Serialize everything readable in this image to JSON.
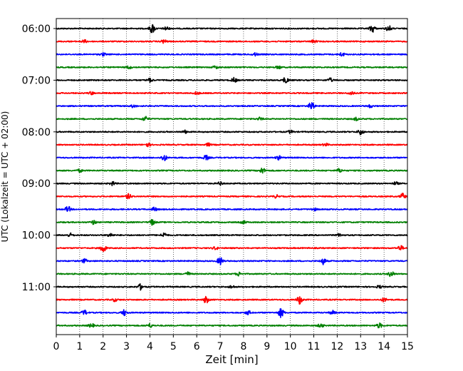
{
  "chart_data": {
    "type": "line",
    "title": "",
    "xlabel": "Zeit  [min]",
    "ylabel": "UTC (Lokalzeit = UTC + 02:00)",
    "xlim": [
      0,
      15
    ],
    "x_ticks": [
      "0",
      "1",
      "2",
      "3",
      "4",
      "5",
      "6",
      "7",
      "8",
      "9",
      "10",
      "11",
      "12",
      "13",
      "14",
      "15"
    ],
    "grid": "vertical dotted lines at each minute",
    "rows_per_hour": 4,
    "row_interval_minutes": 15,
    "y_ticks": [
      "06:00",
      "07:00",
      "08:00",
      "09:00",
      "10:00",
      "11:00"
    ],
    "color_cycle": [
      "#000000",
      "#ff0000",
      "#0000ff",
      "#008000"
    ],
    "series": [
      {
        "start": "06:00",
        "color": "#000000",
        "events": [
          [
            4.1,
            1.0
          ],
          [
            4.7,
            0.4
          ],
          [
            13.5,
            0.8
          ],
          [
            14.2,
            0.6
          ]
        ]
      },
      {
        "start": "06:15",
        "color": "#ff0000",
        "events": [
          [
            1.2,
            0.3
          ],
          [
            4.6,
            0.4
          ],
          [
            11.0,
            0.3
          ]
        ]
      },
      {
        "start": "06:30",
        "color": "#0000ff",
        "events": [
          [
            2.0,
            0.3
          ],
          [
            8.5,
            0.3
          ],
          [
            12.2,
            0.4
          ]
        ]
      },
      {
        "start": "06:45",
        "color": "#008000",
        "events": [
          [
            3.1,
            0.3
          ],
          [
            6.8,
            0.3
          ],
          [
            9.5,
            0.3
          ]
        ]
      },
      {
        "start": "07:00",
        "color": "#000000",
        "events": [
          [
            4.0,
            0.4
          ],
          [
            7.6,
            0.5
          ],
          [
            9.8,
            0.6
          ],
          [
            11.7,
            0.4
          ]
        ]
      },
      {
        "start": "07:15",
        "color": "#ff0000",
        "events": [
          [
            1.5,
            0.3
          ],
          [
            6.0,
            0.3
          ],
          [
            12.6,
            0.4
          ]
        ]
      },
      {
        "start": "07:30",
        "color": "#0000ff",
        "events": [
          [
            3.3,
            0.3
          ],
          [
            10.9,
            0.9
          ],
          [
            13.4,
            0.3
          ]
        ]
      },
      {
        "start": "07:45",
        "color": "#008000",
        "events": [
          [
            3.8,
            0.5
          ],
          [
            8.7,
            0.3
          ],
          [
            12.8,
            0.3
          ]
        ]
      },
      {
        "start": "08:00",
        "color": "#000000",
        "events": [
          [
            5.5,
            0.3
          ],
          [
            10.0,
            0.3
          ],
          [
            13.0,
            0.6
          ]
        ]
      },
      {
        "start": "08:15",
        "color": "#ff0000",
        "events": [
          [
            3.9,
            0.4
          ],
          [
            6.5,
            0.3
          ],
          [
            11.5,
            0.3
          ]
        ]
      },
      {
        "start": "08:30",
        "color": "#0000ff",
        "events": [
          [
            4.6,
            0.7
          ],
          [
            6.4,
            0.5
          ],
          [
            9.5,
            0.4
          ]
        ]
      },
      {
        "start": "08:45",
        "color": "#008000",
        "events": [
          [
            1.0,
            0.3
          ],
          [
            8.8,
            0.6
          ],
          [
            12.1,
            0.4
          ]
        ]
      },
      {
        "start": "09:00",
        "color": "#000000",
        "events": [
          [
            2.4,
            0.4
          ],
          [
            7.0,
            0.3
          ],
          [
            14.5,
            0.3
          ]
        ]
      },
      {
        "start": "09:15",
        "color": "#ff0000",
        "events": [
          [
            3.1,
            0.5
          ],
          [
            9.4,
            0.3
          ],
          [
            14.8,
            0.6
          ]
        ]
      },
      {
        "start": "09:30",
        "color": "#0000ff",
        "events": [
          [
            0.5,
            0.6
          ],
          [
            4.2,
            0.4
          ],
          [
            11.0,
            0.3
          ]
        ]
      },
      {
        "start": "09:45",
        "color": "#008000",
        "events": [
          [
            1.6,
            0.4
          ],
          [
            4.1,
            0.6
          ],
          [
            8.0,
            0.3
          ]
        ]
      },
      {
        "start": "10:00",
        "color": "#000000",
        "events": [
          [
            0.6,
            0.4
          ],
          [
            2.3,
            0.4
          ],
          [
            4.6,
            0.5
          ],
          [
            12.1,
            0.3
          ]
        ]
      },
      {
        "start": "10:15",
        "color": "#ff0000",
        "events": [
          [
            2.0,
            0.9
          ],
          [
            6.8,
            0.3
          ],
          [
            14.7,
            0.5
          ]
        ]
      },
      {
        "start": "10:30",
        "color": "#0000ff",
        "events": [
          [
            1.2,
            0.4
          ],
          [
            7.0,
            0.8
          ],
          [
            11.4,
            0.7
          ]
        ]
      },
      {
        "start": "10:45",
        "color": "#008000",
        "events": [
          [
            5.6,
            0.4
          ],
          [
            7.8,
            0.4
          ],
          [
            14.3,
            0.6
          ]
        ]
      },
      {
        "start": "11:00",
        "color": "#000000",
        "events": [
          [
            3.6,
            0.6
          ],
          [
            7.5,
            0.3
          ],
          [
            13.8,
            0.3
          ]
        ]
      },
      {
        "start": "11:15",
        "color": "#ff0000",
        "events": [
          [
            2.5,
            0.3
          ],
          [
            6.4,
            0.7
          ],
          [
            10.4,
            0.9
          ],
          [
            14.0,
            0.4
          ]
        ]
      },
      {
        "start": "11:30",
        "color": "#0000ff",
        "events": [
          [
            1.2,
            0.5
          ],
          [
            2.9,
            0.6
          ],
          [
            8.2,
            0.4
          ],
          [
            9.6,
            1.0
          ],
          [
            11.8,
            0.4
          ]
        ]
      },
      {
        "start": "11:45",
        "color": "#008000",
        "events": [
          [
            1.5,
            0.4
          ],
          [
            4.0,
            0.4
          ],
          [
            11.3,
            0.4
          ],
          [
            13.8,
            0.5
          ]
        ]
      }
    ]
  }
}
